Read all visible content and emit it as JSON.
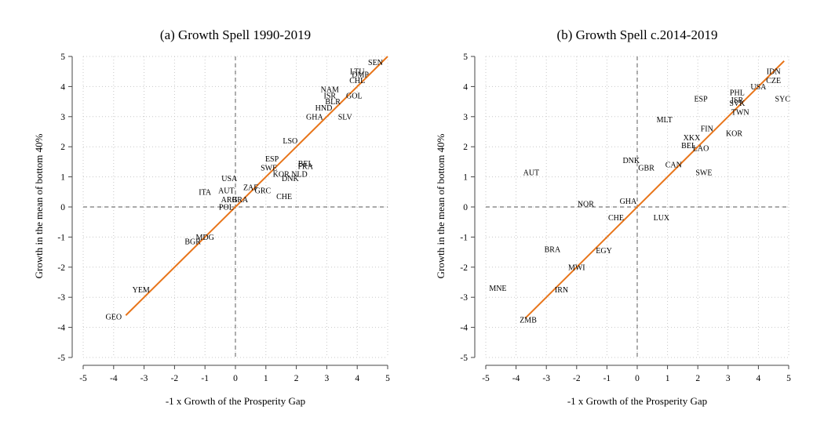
{
  "figure": {
    "y_axis_label": "Growth in the mean of bottom 40%",
    "x_axis_label": "-1 x Growth of the Prosperity Gap"
  },
  "chart_data": [
    {
      "type": "scatter",
      "title": "(a) Growth Spell 1990-2019",
      "xlabel": "-1 x Growth of the Prosperity Gap",
      "ylabel": "Growth in the mean of bottom 40%",
      "xlim": [
        -5,
        5
      ],
      "ylim": [
        -5,
        5
      ],
      "xticks": [
        "-5",
        "-4",
        "-3",
        "-2",
        "-1",
        "0",
        "1",
        "2",
        "3",
        "4",
        "5"
      ],
      "yticks": [
        "-5",
        "-4",
        "-3",
        "-2",
        "-1",
        "0",
        "1",
        "2",
        "3",
        "4",
        "5"
      ],
      "grid": true,
      "zero_reference_lines": true,
      "fit_line": {
        "x1": -3.6,
        "y1": -3.6,
        "x2": 5.0,
        "y2": 5.0,
        "color": "#E8751A"
      },
      "labels": [
        {
          "label": "SEN",
          "x": 4.6,
          "y": 4.8
        },
        {
          "label": "LTU",
          "x": 4.0,
          "y": 4.5
        },
        {
          "label": "DMP",
          "x": 4.1,
          "y": 4.4
        },
        {
          "label": "CHL",
          "x": 4.0,
          "y": 4.2
        },
        {
          "label": "NAM",
          "x": 3.1,
          "y": 3.9
        },
        {
          "label": "ISR",
          "x": 3.1,
          "y": 3.7
        },
        {
          "label": "GOL",
          "x": 3.9,
          "y": 3.7
        },
        {
          "label": "BLR",
          "x": 3.2,
          "y": 3.5
        },
        {
          "label": "HND",
          "x": 2.9,
          "y": 3.3
        },
        {
          "label": "GHA",
          "x": 2.6,
          "y": 3.0
        },
        {
          "label": "SLV",
          "x": 3.6,
          "y": 3.0
        },
        {
          "label": "LSO",
          "x": 1.8,
          "y": 2.2
        },
        {
          "label": "ESP",
          "x": 1.2,
          "y": 1.6
        },
        {
          "label": "SWE",
          "x": 1.1,
          "y": 1.3
        },
        {
          "label": "KOR",
          "x": 1.5,
          "y": 1.1
        },
        {
          "label": "DNK",
          "x": 1.8,
          "y": 0.95
        },
        {
          "label": "BEL",
          "x": 2.3,
          "y": 1.45
        },
        {
          "label": "FRA",
          "x": 2.3,
          "y": 1.35
        },
        {
          "label": "NLD",
          "x": 2.1,
          "y": 1.1
        },
        {
          "label": "USA",
          "x": -0.2,
          "y": 0.95
        },
        {
          "label": "ITA",
          "x": -1.0,
          "y": 0.5
        },
        {
          "label": "AUT",
          "x": -0.3,
          "y": 0.55
        },
        {
          "label": "ZAF",
          "x": 0.5,
          "y": 0.65
        },
        {
          "label": "GRC",
          "x": 0.9,
          "y": 0.55
        },
        {
          "label": "CHE",
          "x": 1.6,
          "y": 0.35
        },
        {
          "label": "ARG",
          "x": -0.2,
          "y": 0.25
        },
        {
          "label": "BRA",
          "x": 0.15,
          "y": 0.25
        },
        {
          "label": "POL",
          "x": -0.3,
          "y": 0.0
        },
        {
          "label": "MDG",
          "x": -1.0,
          "y": -1.0
        },
        {
          "label": "BGR",
          "x": -1.4,
          "y": -1.15
        },
        {
          "label": "YEM",
          "x": -3.1,
          "y": -2.75
        },
        {
          "label": "GEO",
          "x": -4.0,
          "y": -3.65
        }
      ]
    },
    {
      "type": "scatter",
      "title": "(b) Growth Spell c.2014-2019",
      "xlabel": "-1 x Growth of the Prosperity Gap",
      "ylabel": "Growth in the mean of bottom 40%",
      "xlim": [
        -5,
        5
      ],
      "ylim": [
        -5,
        5
      ],
      "xticks": [
        "-5",
        "-4",
        "-3",
        "-2",
        "-1",
        "0",
        "1",
        "2",
        "3",
        "4",
        "5"
      ],
      "yticks": [
        "-5",
        "-4",
        "-3",
        "-2",
        "-1",
        "0",
        "1",
        "2",
        "3",
        "4",
        "5"
      ],
      "grid": true,
      "zero_reference_lines": true,
      "fit_line": {
        "x1": -3.7,
        "y1": -3.7,
        "x2": 4.85,
        "y2": 4.85,
        "color": "#E8751A"
      },
      "labels": [
        {
          "label": "IDN",
          "x": 4.5,
          "y": 4.5
        },
        {
          "label": "CZE",
          "x": 4.5,
          "y": 4.2
        },
        {
          "label": "USA",
          "x": 4.0,
          "y": 4.0
        },
        {
          "label": "PHL",
          "x": 3.3,
          "y": 3.8
        },
        {
          "label": "SYC",
          "x": 4.8,
          "y": 3.6
        },
        {
          "label": "ESP",
          "x": 2.1,
          "y": 3.6
        },
        {
          "label": "ISR",
          "x": 3.3,
          "y": 3.55
        },
        {
          "label": "SVK",
          "x": 3.3,
          "y": 3.45
        },
        {
          "label": "TWN",
          "x": 3.4,
          "y": 3.15
        },
        {
          "label": "MLT",
          "x": 0.9,
          "y": 2.9
        },
        {
          "label": "KOR",
          "x": 3.2,
          "y": 2.45
        },
        {
          "label": "FIN",
          "x": 2.3,
          "y": 2.6
        },
        {
          "label": "XKX",
          "x": 1.8,
          "y": 2.3
        },
        {
          "label": "BEL",
          "x": 1.7,
          "y": 2.05
        },
        {
          "label": "LAO",
          "x": 2.1,
          "y": 1.95
        },
        {
          "label": "DNK",
          "x": -0.2,
          "y": 1.55
        },
        {
          "label": "GBR",
          "x": 0.3,
          "y": 1.3
        },
        {
          "label": "CAN",
          "x": 1.2,
          "y": 1.4
        },
        {
          "label": "SWE",
          "x": 2.2,
          "y": 1.15
        },
        {
          "label": "AUT",
          "x": -3.5,
          "y": 1.15
        },
        {
          "label": "GHA",
          "x": -0.3,
          "y": 0.2
        },
        {
          "label": "NOR",
          "x": -1.7,
          "y": 0.1
        },
        {
          "label": "LUX",
          "x": 0.8,
          "y": -0.35
        },
        {
          "label": "CHE",
          "x": -0.7,
          "y": -0.35
        },
        {
          "label": "BRA",
          "x": -2.8,
          "y": -1.4
        },
        {
          "label": "EGY",
          "x": -1.1,
          "y": -1.45
        },
        {
          "label": "MWI",
          "x": -2.0,
          "y": -2.0
        },
        {
          "label": "MNE",
          "x": -4.6,
          "y": -2.7
        },
        {
          "label": "IRN",
          "x": -2.5,
          "y": -2.75
        },
        {
          "label": "ZMB",
          "x": -3.6,
          "y": -3.75
        }
      ]
    }
  ]
}
